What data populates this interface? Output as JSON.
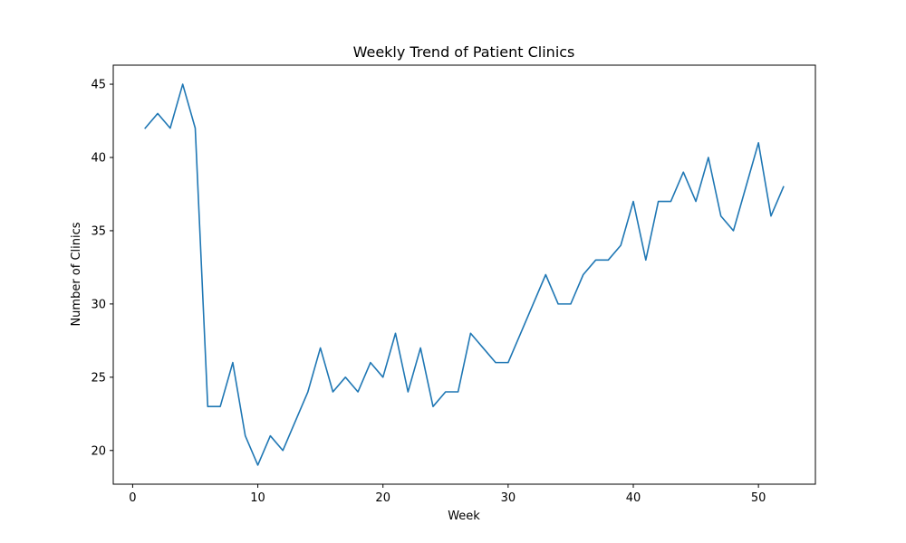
{
  "chart_data": {
    "type": "line",
    "title": "Weekly Trend of Patient Clinics",
    "xlabel": "Week",
    "ylabel": "Number of Clinics",
    "xlim": [
      -1.55,
      54.55
    ],
    "ylim": [
      17.7,
      46.3
    ],
    "xticks": [
      0,
      10,
      20,
      30,
      40,
      50
    ],
    "yticks": [
      20,
      25,
      30,
      35,
      40,
      45
    ],
    "grid": false,
    "legend": "none",
    "series": [
      {
        "color": "#1f77b4",
        "x": [
          1,
          2,
          3,
          4,
          5,
          6,
          7,
          8,
          9,
          10,
          11,
          12,
          13,
          14,
          15,
          16,
          17,
          18,
          19,
          20,
          21,
          22,
          23,
          24,
          25,
          26,
          27,
          28,
          29,
          30,
          31,
          32,
          33,
          34,
          35,
          36,
          37,
          38,
          39,
          40,
          41,
          42,
          43,
          44,
          45,
          46,
          47,
          48,
          49,
          50,
          51,
          52
        ],
        "y": [
          42,
          43,
          42,
          45,
          42,
          23,
          23,
          26,
          21,
          19,
          21,
          20,
          22,
          24,
          27,
          24,
          25,
          24,
          26,
          25,
          28,
          24,
          27,
          23,
          24,
          24,
          28,
          27,
          26,
          26,
          28,
          30,
          32,
          30,
          30,
          32,
          33,
          33,
          34,
          37,
          33,
          37,
          37,
          39,
          37,
          40,
          36,
          35,
          38,
          41,
          36,
          38
        ]
      }
    ]
  }
}
